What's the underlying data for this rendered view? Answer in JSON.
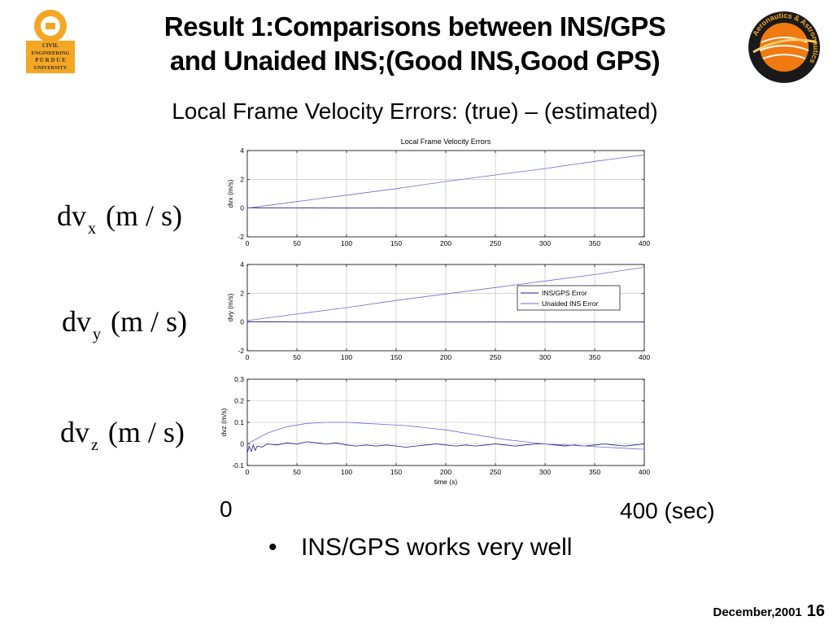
{
  "slide": {
    "title_line1": "Result 1:Comparisons between INS/GPS",
    "title_line2": "and Unaided INS;(Good INS,Good GPS)",
    "subtitle": "Local Frame Velocity Errors: (true) – (estimated)",
    "left_logo_text": [
      "CIVIL",
      "ENGINEERING",
      "P U R D U E",
      "UNIVERSITY"
    ],
    "right_logo_text": "Aeronautics & Astronautics",
    "ylabels": [
      {
        "base": "dv",
        "sub": "x",
        "unit": "(m / s)"
      },
      {
        "base": "dv",
        "sub": "y",
        "unit": "(m / s)"
      },
      {
        "base": "dv",
        "sub": "z",
        "unit": "(m / s)"
      }
    ],
    "time_start": "0",
    "time_end": "400 (sec)",
    "bullet": "INS/GPS works very well",
    "footer_date": "December,2001",
    "footer_page": "16",
    "accent_colors": {
      "logo_orange": "#f5a623",
      "globe_orange": "#f07a10",
      "series_ins_gps": "#1a1a8c",
      "series_unaided": "#6a6ad8"
    }
  },
  "chart_data": [
    {
      "type": "line",
      "title": "Local Frame Velocity Errors",
      "xlabel": "",
      "ylabel": "dvx (m/s)",
      "xlim": [
        0,
        400
      ],
      "ylim": [
        -2,
        4
      ],
      "xticks": [
        0,
        50,
        100,
        150,
        200,
        250,
        300,
        350,
        400
      ],
      "yticks": [
        -2,
        0,
        2,
        4
      ],
      "grid": true,
      "series": [
        {
          "name": "INS/GPS Error",
          "x": [
            0,
            50,
            100,
            150,
            200,
            250,
            300,
            350,
            400
          ],
          "values": [
            0.02,
            0.01,
            0.0,
            0.0,
            0.0,
            0.0,
            0.0,
            0.0,
            0.0
          ]
        },
        {
          "name": "Unaided INS Error",
          "x": [
            0,
            50,
            100,
            150,
            200,
            250,
            300,
            350,
            400
          ],
          "values": [
            0.0,
            0.45,
            0.9,
            1.35,
            1.85,
            2.3,
            2.75,
            3.25,
            3.7
          ]
        }
      ]
    },
    {
      "type": "line",
      "title": "",
      "xlabel": "",
      "ylabel": "dvy (m/s)",
      "xlim": [
        0,
        400
      ],
      "ylim": [
        -2,
        4
      ],
      "xticks": [
        0,
        50,
        100,
        150,
        200,
        250,
        300,
        350,
        400
      ],
      "yticks": [
        -2,
        0,
        2,
        4
      ],
      "grid": true,
      "legend": {
        "position": "top-right",
        "entries": [
          "INS/GPS Error",
          "Unaided INS Error"
        ]
      },
      "series": [
        {
          "name": "INS/GPS Error",
          "x": [
            0,
            50,
            100,
            150,
            200,
            250,
            300,
            350,
            400
          ],
          "values": [
            0.02,
            0.0,
            0.0,
            0.0,
            0.0,
            0.0,
            0.0,
            0.0,
            0.0
          ]
        },
        {
          "name": "Unaided INS Error",
          "x": [
            0,
            50,
            100,
            150,
            200,
            250,
            300,
            350,
            400
          ],
          "values": [
            0.1,
            0.55,
            1.0,
            1.5,
            1.95,
            2.4,
            2.85,
            3.3,
            3.8
          ]
        }
      ]
    },
    {
      "type": "line",
      "title": "",
      "xlabel": "time (s)",
      "ylabel": "dvz (m/s)",
      "xlim": [
        0,
        400
      ],
      "ylim": [
        -0.1,
        0.3
      ],
      "xticks": [
        0,
        50,
        100,
        150,
        200,
        250,
        300,
        350,
        400
      ],
      "yticks": [
        -0.1,
        0,
        0.1,
        0.2,
        0.3
      ],
      "grid": true,
      "series": [
        {
          "name": "INS/GPS Error",
          "x": [
            0,
            2,
            4,
            6,
            8,
            10,
            15,
            20,
            30,
            40,
            50,
            60,
            70,
            80,
            90,
            100,
            110,
            120,
            130,
            140,
            150,
            160,
            170,
            180,
            190,
            200,
            210,
            220,
            230,
            240,
            250,
            260,
            270,
            280,
            290,
            300,
            310,
            320,
            330,
            340,
            350,
            360,
            370,
            380,
            390,
            400
          ],
          "values": [
            -0.04,
            -0.01,
            -0.035,
            -0.005,
            -0.03,
            -0.01,
            -0.015,
            0.0,
            -0.005,
            0.005,
            0.0,
            0.01,
            0.005,
            0.0,
            0.005,
            -0.005,
            -0.01,
            -0.005,
            -0.01,
            -0.005,
            -0.01,
            -0.015,
            -0.01,
            -0.005,
            0.0,
            -0.005,
            -0.01,
            -0.005,
            -0.01,
            -0.005,
            0.0,
            -0.005,
            -0.01,
            -0.005,
            0.0,
            0.0,
            -0.005,
            -0.01,
            -0.005,
            -0.01,
            -0.005,
            0.0,
            -0.005,
            -0.01,
            -0.005,
            0.0
          ]
        },
        {
          "name": "Unaided INS Error",
          "x": [
            0,
            20,
            40,
            60,
            80,
            100,
            120,
            140,
            160,
            180,
            200,
            220,
            240,
            260,
            280,
            300,
            320,
            340,
            360,
            380,
            400
          ],
          "values": [
            0.0,
            0.05,
            0.08,
            0.095,
            0.1,
            0.1,
            0.095,
            0.09,
            0.085,
            0.075,
            0.065,
            0.05,
            0.035,
            0.02,
            0.01,
            0.0,
            -0.005,
            -0.01,
            -0.015,
            -0.02,
            -0.025
          ]
        }
      ]
    }
  ]
}
